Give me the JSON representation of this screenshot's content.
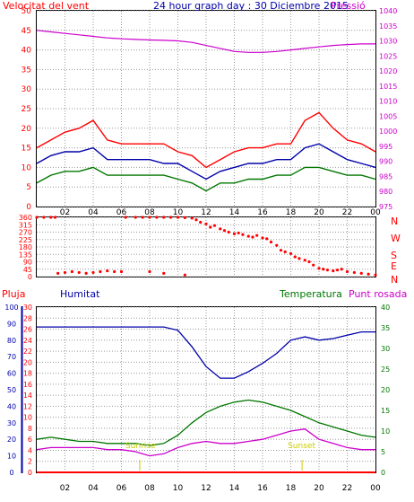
{
  "header": {
    "title": "24 hour graph day : 30 Diciembre 2015",
    "wind_label": "Velocitat del vent",
    "pressure_label": "Pressió"
  },
  "direction_labels": [
    "N",
    "W",
    "S",
    "E",
    "N"
  ],
  "bottom_labels": {
    "rain": "Pluja",
    "humidity": "Humitat",
    "temperature": "Temperatura",
    "dewpoint": "Punt rosada",
    "sunrise": "Sunrise",
    "sunset": "Sunset"
  },
  "colors": {
    "wind_gust": "#ff0000",
    "wind_avg": "#0000aa",
    "wind_low": "#007700",
    "pressure": "#cc00cc",
    "direction": "#ff0000",
    "humidity": "#0000aa",
    "temperature": "#007700",
    "dewpoint": "#cc00cc",
    "rain": "#ff0000",
    "sun_marker": "#cccc00",
    "grid": "#999999"
  },
  "chart_data": [
    {
      "type": "line",
      "name": "wind-and-pressure",
      "x_ticks": [
        "02",
        "04",
        "06",
        "08",
        "10",
        "12",
        "14",
        "16",
        "18",
        "20",
        "22",
        "00"
      ],
      "left_axis": {
        "label": "Velocitat del vent",
        "range": [
          0,
          50
        ],
        "ticks": [
          0,
          5,
          10,
          15,
          20,
          25,
          30,
          35,
          40,
          45,
          50
        ]
      },
      "right_axis": {
        "label": "Pressió",
        "range": [
          975,
          1040
        ],
        "ticks": [
          975,
          980,
          985,
          990,
          995,
          1000,
          1005,
          1010,
          1015,
          1020,
          1025,
          1030,
          1035,
          1040
        ]
      },
      "hours": [
        0,
        1,
        2,
        3,
        4,
        5,
        6,
        7,
        8,
        9,
        10,
        11,
        12,
        13,
        14,
        15,
        16,
        17,
        18,
        19,
        20,
        21,
        22,
        23,
        24
      ],
      "series": [
        {
          "key": "gust",
          "axis": "left",
          "values": [
            15,
            17,
            19,
            20,
            22,
            17,
            16,
            16,
            16,
            16,
            14,
            13,
            10,
            12,
            14,
            15,
            15,
            16,
            16,
            22,
            24,
            20,
            17,
            16,
            14
          ]
        },
        {
          "key": "average",
          "axis": "left",
          "values": [
            11,
            13,
            14,
            14,
            15,
            12,
            12,
            12,
            12,
            11,
            11,
            9,
            7,
            9,
            10,
            11,
            11,
            12,
            12,
            15,
            16,
            14,
            12,
            11,
            10
          ]
        },
        {
          "key": "low",
          "axis": "left",
          "values": [
            6,
            8,
            9,
            9,
            10,
            8,
            8,
            8,
            8,
            8,
            7,
            6,
            4,
            6,
            6,
            7,
            7,
            8,
            8,
            10,
            10,
            9,
            8,
            8,
            7
          ]
        },
        {
          "key": "pressure",
          "axis": "right",
          "values": [
            1033.5,
            1033.0,
            1032.5,
            1032.0,
            1031.5,
            1031.0,
            1030.7,
            1030.5,
            1030.3,
            1030.2,
            1030.0,
            1029.5,
            1028.5,
            1027.5,
            1026.5,
            1026.2,
            1026.2,
            1026.5,
            1027.0,
            1027.5,
            1028.0,
            1028.5,
            1028.8,
            1029.0,
            1029.0
          ]
        }
      ]
    },
    {
      "type": "scatter",
      "name": "wind-direction",
      "y_axis": {
        "range": [
          0,
          360
        ],
        "ticks": [
          0,
          45,
          90,
          135,
          180,
          225,
          270,
          315,
          360
        ]
      },
      "points": [
        [
          0.0,
          360
        ],
        [
          0.5,
          360
        ],
        [
          1.0,
          360
        ],
        [
          1.3,
          360
        ],
        [
          1.5,
          20
        ],
        [
          2.0,
          25
        ],
        [
          2.5,
          30
        ],
        [
          3.0,
          25
        ],
        [
          3.5,
          20
        ],
        [
          4.0,
          25
        ],
        [
          4.5,
          30
        ],
        [
          5.0,
          35
        ],
        [
          5.5,
          30
        ],
        [
          6.0,
          30
        ],
        [
          6.3,
          360
        ],
        [
          7.0,
          360
        ],
        [
          7.5,
          360
        ],
        [
          8.0,
          360
        ],
        [
          8.5,
          360
        ],
        [
          9.0,
          360
        ],
        [
          9.5,
          360
        ],
        [
          10.0,
          360
        ],
        [
          10.5,
          358
        ],
        [
          11.0,
          355
        ],
        [
          8.0,
          30
        ],
        [
          9.0,
          20
        ],
        [
          10.5,
          10
        ],
        [
          11.3,
          345
        ],
        [
          11.6,
          330
        ],
        [
          12.0,
          320
        ],
        [
          12.3,
          300
        ],
        [
          12.6,
          310
        ],
        [
          13.0,
          290
        ],
        [
          13.3,
          280
        ],
        [
          13.6,
          270
        ],
        [
          14.0,
          260
        ],
        [
          14.3,
          265
        ],
        [
          14.6,
          255
        ],
        [
          15.0,
          245
        ],
        [
          15.3,
          240
        ],
        [
          15.6,
          250
        ],
        [
          16.0,
          235
        ],
        [
          16.3,
          230
        ],
        [
          16.6,
          210
        ],
        [
          17.0,
          190
        ],
        [
          17.3,
          160
        ],
        [
          17.6,
          150
        ],
        [
          18.0,
          140
        ],
        [
          18.3,
          120
        ],
        [
          18.6,
          110
        ],
        [
          19.0,
          100
        ],
        [
          19.3,
          90
        ],
        [
          19.6,
          70
        ],
        [
          20.0,
          50
        ],
        [
          20.3,
          45
        ],
        [
          20.6,
          40
        ],
        [
          21.0,
          35
        ],
        [
          21.3,
          40
        ],
        [
          21.6,
          45
        ],
        [
          22.0,
          30
        ],
        [
          22.5,
          25
        ],
        [
          23.0,
          20
        ],
        [
          23.5,
          15
        ],
        [
          24.0,
          10
        ]
      ]
    },
    {
      "type": "line",
      "name": "humidity-temperature-dewpoint",
      "left_axis_humidity": {
        "label": "Humitat",
        "range": [
          0,
          100
        ],
        "ticks": [
          0,
          10,
          20,
          30,
          40,
          50,
          60,
          70,
          80,
          90,
          100
        ]
      },
      "left_axis_rain": {
        "label": "Pluja",
        "range": [
          0,
          30
        ],
        "ticks": [
          0,
          2,
          4,
          6,
          8,
          10,
          12,
          14,
          16,
          18,
          20,
          22,
          24,
          26,
          28,
          30
        ]
      },
      "right_axis": {
        "label": "Temperatura",
        "range": [
          0,
          40
        ],
        "ticks": [
          0,
          5,
          10,
          15,
          20,
          25,
          30,
          35,
          40
        ]
      },
      "hours": [
        0,
        1,
        2,
        3,
        4,
        5,
        6,
        7,
        8,
        9,
        10,
        11,
        12,
        13,
        14,
        15,
        16,
        17,
        18,
        19,
        20,
        21,
        22,
        23,
        24
      ],
      "series": [
        {
          "key": "humidity",
          "axis": "humidity",
          "values": [
            88,
            88,
            88,
            88,
            88,
            88,
            88,
            88,
            88,
            88,
            86,
            76,
            64,
            57,
            57,
            61,
            66,
            72,
            80,
            82,
            80,
            81,
            83,
            85,
            85
          ]
        },
        {
          "key": "temperature",
          "axis": "right",
          "values": [
            8,
            8.5,
            8,
            7.5,
            7.5,
            7,
            7,
            7,
            6.5,
            7,
            9,
            12,
            14.5,
            16,
            17,
            17.5,
            17,
            16,
            15,
            13.5,
            12,
            11,
            10,
            9,
            8.5
          ]
        },
        {
          "key": "dewpoint",
          "axis": "right",
          "values": [
            5.5,
            6,
            6,
            6,
            6,
            5.5,
            5.5,
            5,
            4,
            4.5,
            6,
            7,
            7.5,
            7,
            7,
            7.5,
            8,
            9,
            10,
            10.5,
            8,
            7,
            6,
            5.5,
            5.5
          ]
        },
        {
          "key": "rain",
          "axis": "rain",
          "values": [
            0,
            0,
            0,
            0,
            0,
            0,
            0,
            0,
            0,
            0,
            0,
            0,
            0,
            0,
            0,
            0,
            0,
            0,
            0,
            0,
            0,
            0,
            0,
            0,
            0
          ]
        }
      ],
      "sunrise_hour": 7.3,
      "sunset_hour": 18.8
    }
  ]
}
